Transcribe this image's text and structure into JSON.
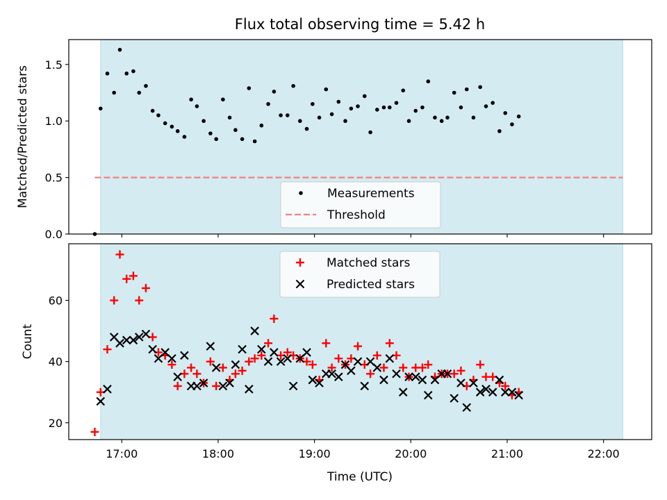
{
  "figure": {
    "title": "Flux total observing time = 5.42 h",
    "xlabel": "Time (UTC)",
    "xticks": [
      {
        "value": 17,
        "label": "17:00"
      },
      {
        "value": 18,
        "label": "18:00"
      },
      {
        "value": 19,
        "label": "19:00"
      },
      {
        "value": 20,
        "label": "20:00"
      },
      {
        "value": 21,
        "label": "21:00"
      },
      {
        "value": 22,
        "label": "22:00"
      }
    ]
  },
  "chart_data": [
    {
      "type": "scatter",
      "title": "Flux total observing time = 5.42 h",
      "xlabel": "",
      "ylabel": "Matched/Predicted stars",
      "xlim": [
        16.45,
        22.5
      ],
      "ylim": [
        0,
        1.72
      ],
      "yticks": [
        {
          "value": 0.0,
          "label": "0.0"
        },
        {
          "value": 0.5,
          "label": "0.5"
        },
        {
          "value": 1.0,
          "label": "1.0"
        },
        {
          "value": 1.5,
          "label": "1.5"
        }
      ],
      "shaded_region": {
        "x": [
          16.78,
          22.2
        ],
        "color": "#d4ebf1"
      },
      "legend": {
        "placement": "lower center",
        "entries": [
          "Measurements",
          "Threshold"
        ]
      },
      "series": [
        {
          "name": "Measurements",
          "marker": "dot",
          "color": "#000000",
          "points": [
            [
              16.72,
              0.0
            ],
            [
              16.78,
              1.11
            ],
            [
              16.85,
              1.42
            ],
            [
              16.92,
              1.25
            ],
            [
              16.98,
              1.63
            ],
            [
              17.05,
              1.42
            ],
            [
              17.12,
              1.44
            ],
            [
              17.18,
              1.25
            ],
            [
              17.25,
              1.31
            ],
            [
              17.32,
              1.09
            ],
            [
              17.38,
              1.05
            ],
            [
              17.45,
              0.98
            ],
            [
              17.52,
              0.95
            ],
            [
              17.58,
              0.91
            ],
            [
              17.65,
              0.86
            ],
            [
              17.72,
              1.19
            ],
            [
              17.78,
              1.13
            ],
            [
              17.85,
              1.0
            ],
            [
              17.92,
              0.89
            ],
            [
              17.98,
              0.84
            ],
            [
              18.05,
              1.19
            ],
            [
              18.12,
              1.03
            ],
            [
              18.18,
              0.92
            ],
            [
              18.25,
              0.84
            ],
            [
              18.32,
              1.29
            ],
            [
              18.38,
              0.82
            ],
            [
              18.45,
              0.96
            ],
            [
              18.52,
              1.15
            ],
            [
              18.58,
              1.26
            ],
            [
              18.65,
              1.05
            ],
            [
              18.72,
              1.05
            ],
            [
              18.78,
              1.31
            ],
            [
              18.85,
              1.0
            ],
            [
              18.92,
              0.93
            ],
            [
              18.98,
              1.15
            ],
            [
              19.05,
              1.03
            ],
            [
              19.12,
              1.28
            ],
            [
              19.18,
              1.06
            ],
            [
              19.25,
              1.17
            ],
            [
              19.32,
              1.0
            ],
            [
              19.38,
              1.11
            ],
            [
              19.45,
              1.13
            ],
            [
              19.52,
              1.22
            ],
            [
              19.58,
              0.9
            ],
            [
              19.65,
              1.1
            ],
            [
              19.72,
              1.12
            ],
            [
              19.78,
              1.12
            ],
            [
              19.85,
              1.16
            ],
            [
              19.92,
              1.27
            ],
            [
              19.98,
              1.0
            ],
            [
              20.05,
              1.09
            ],
            [
              20.12,
              1.12
            ],
            [
              20.18,
              1.35
            ],
            [
              20.25,
              1.03
            ],
            [
              20.32,
              1.0
            ],
            [
              20.38,
              1.03
            ],
            [
              20.45,
              1.25
            ],
            [
              20.52,
              1.12
            ],
            [
              20.58,
              1.28
            ],
            [
              20.65,
              1.03
            ],
            [
              20.72,
              1.3
            ],
            [
              20.78,
              1.13
            ],
            [
              20.85,
              1.16
            ],
            [
              20.92,
              0.91
            ],
            [
              20.98,
              1.07
            ],
            [
              21.05,
              0.97
            ],
            [
              21.12,
              1.04
            ]
          ]
        },
        {
          "name": "Threshold",
          "marker": "dashed-line",
          "color": "#f08080",
          "points": [
            [
              16.72,
              0.5
            ],
            [
              22.2,
              0.5
            ]
          ]
        }
      ]
    },
    {
      "type": "scatter",
      "xlabel": "Time (UTC)",
      "ylabel": "Count",
      "xlim": [
        16.45,
        22.5
      ],
      "ylim": [
        14.5,
        78.5
      ],
      "yticks": [
        {
          "value": 20,
          "label": "20"
        },
        {
          "value": 40,
          "label": "40"
        },
        {
          "value": 60,
          "label": "60"
        }
      ],
      "shaded_region": {
        "x": [
          16.78,
          22.2
        ],
        "color": "#d4ebf1"
      },
      "legend": {
        "placement": "upper center",
        "entries": [
          "Matched stars",
          "Predicted stars"
        ]
      },
      "series": [
        {
          "name": "Matched stars",
          "marker": "plus",
          "color": "#ff0000",
          "points": [
            [
              16.72,
              17
            ],
            [
              16.78,
              30
            ],
            [
              16.85,
              44
            ],
            [
              16.92,
              60
            ],
            [
              16.98,
              75
            ],
            [
              17.05,
              67
            ],
            [
              17.12,
              68
            ],
            [
              17.18,
              60
            ],
            [
              17.25,
              64
            ],
            [
              17.32,
              48
            ],
            [
              17.38,
              43
            ],
            [
              17.45,
              42
            ],
            [
              17.52,
              39
            ],
            [
              17.58,
              32
            ],
            [
              17.65,
              36
            ],
            [
              17.72,
              38
            ],
            [
              17.78,
              36
            ],
            [
              17.85,
              33
            ],
            [
              17.92,
              40
            ],
            [
              17.98,
              32
            ],
            [
              18.05,
              38
            ],
            [
              18.12,
              34
            ],
            [
              18.18,
              36
            ],
            [
              18.25,
              37
            ],
            [
              18.32,
              40
            ],
            [
              18.38,
              41
            ],
            [
              18.45,
              42
            ],
            [
              18.52,
              46
            ],
            [
              18.58,
              54
            ],
            [
              18.65,
              42
            ],
            [
              18.72,
              43
            ],
            [
              18.78,
              42
            ],
            [
              18.85,
              41
            ],
            [
              18.92,
              40
            ],
            [
              18.98,
              39
            ],
            [
              19.05,
              34
            ],
            [
              19.12,
              46
            ],
            [
              19.18,
              38
            ],
            [
              19.25,
              41
            ],
            [
              19.32,
              39
            ],
            [
              19.38,
              41
            ],
            [
              19.45,
              45
            ],
            [
              19.52,
              39
            ],
            [
              19.58,
              36
            ],
            [
              19.65,
              42
            ],
            [
              19.72,
              38
            ],
            [
              19.78,
              46
            ],
            [
              19.85,
              42
            ],
            [
              19.92,
              38
            ],
            [
              19.98,
              35
            ],
            [
              20.05,
              38
            ],
            [
              20.12,
              38
            ],
            [
              20.18,
              39
            ],
            [
              20.25,
              35
            ],
            [
              20.32,
              36
            ],
            [
              20.38,
              36
            ],
            [
              20.45,
              36
            ],
            [
              20.52,
              37
            ],
            [
              20.58,
              32
            ],
            [
              20.65,
              34
            ],
            [
              20.72,
              39
            ],
            [
              20.78,
              35
            ],
            [
              20.85,
              35
            ],
            [
              20.92,
              33
            ],
            [
              20.98,
              32
            ],
            [
              21.05,
              29
            ],
            [
              21.12,
              30
            ]
          ]
        },
        {
          "name": "Predicted stars",
          "marker": "x",
          "color": "#000000",
          "points": [
            [
              16.78,
              27
            ],
            [
              16.85,
              31
            ],
            [
              16.92,
              48
            ],
            [
              16.98,
              46
            ],
            [
              17.05,
              47
            ],
            [
              17.12,
              47
            ],
            [
              17.18,
              48
            ],
            [
              17.25,
              49
            ],
            [
              17.32,
              44
            ],
            [
              17.38,
              41
            ],
            [
              17.45,
              43
            ],
            [
              17.52,
              41
            ],
            [
              17.58,
              35
            ],
            [
              17.65,
              42
            ],
            [
              17.72,
              32
            ],
            [
              17.78,
              32
            ],
            [
              17.85,
              33
            ],
            [
              17.92,
              45
            ],
            [
              17.98,
              38
            ],
            [
              18.05,
              32
            ],
            [
              18.12,
              33
            ],
            [
              18.18,
              39
            ],
            [
              18.25,
              44
            ],
            [
              18.32,
              31
            ],
            [
              18.38,
              50
            ],
            [
              18.45,
              44
            ],
            [
              18.52,
              40
            ],
            [
              18.58,
              43
            ],
            [
              18.65,
              40
            ],
            [
              18.72,
              41
            ],
            [
              18.78,
              32
            ],
            [
              18.85,
              41
            ],
            [
              18.92,
              43
            ],
            [
              18.98,
              34
            ],
            [
              19.05,
              33
            ],
            [
              19.12,
              36
            ],
            [
              19.18,
              36
            ],
            [
              19.25,
              35
            ],
            [
              19.32,
              39
            ],
            [
              19.38,
              37
            ],
            [
              19.45,
              40
            ],
            [
              19.52,
              32
            ],
            [
              19.58,
              40
            ],
            [
              19.65,
              38
            ],
            [
              19.72,
              34
            ],
            [
              19.78,
              41
            ],
            [
              19.85,
              36
            ],
            [
              19.92,
              30
            ],
            [
              19.98,
              35
            ],
            [
              20.05,
              35
            ],
            [
              20.12,
              34
            ],
            [
              20.18,
              29
            ],
            [
              20.25,
              34
            ],
            [
              20.32,
              36
            ],
            [
              20.38,
              36
            ],
            [
              20.45,
              28
            ],
            [
              20.52,
              33
            ],
            [
              20.58,
              25
            ],
            [
              20.65,
              33
            ],
            [
              20.72,
              30
            ],
            [
              20.78,
              31
            ],
            [
              20.85,
              30
            ],
            [
              20.92,
              34
            ],
            [
              20.98,
              30
            ],
            [
              21.05,
              30
            ],
            [
              21.12,
              29
            ]
          ]
        }
      ]
    }
  ]
}
